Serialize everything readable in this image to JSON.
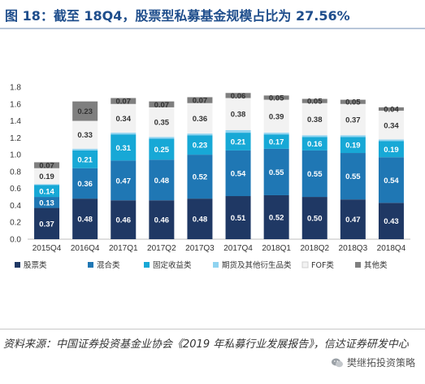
{
  "figure": {
    "title": "图 18：截至 18Q4，股票型私募基金规模占比为 27.56%"
  },
  "source": {
    "text": "资料来源：中国证券投资基金业协会《2019 年私募行业发展报告》，信达证券研发中心"
  },
  "watermark": {
    "text": "樊继拓投资策略",
    "icon": "wechat-logo-icon"
  },
  "colors": {
    "header_rule": "#b8c7d9",
    "title": "#1f4e8c"
  },
  "chart_data": {
    "type": "bar",
    "stacked": true,
    "title": "",
    "xlabel": "",
    "ylabel": "",
    "ylim": [
      0,
      1.8
    ],
    "yticks": [
      "0.0",
      "0.2",
      "0.4",
      "0.6",
      "0.8",
      "1.0",
      "1.2",
      "1.4",
      "1.6",
      "1.8"
    ],
    "grid": false,
    "legend_position": "bottom",
    "categories": [
      "2015Q4",
      "2016Q4",
      "2017Q1",
      "2017Q2",
      "2017Q3",
      "2017Q4",
      "2018Q1",
      "2018Q2",
      "2018Q3",
      "2018Q4"
    ],
    "series": [
      {
        "name": "股票类",
        "color": "#1f3864",
        "label_color": "#ffffff",
        "values": [
          0.37,
          0.48,
          0.46,
          0.46,
          0.48,
          0.51,
          0.52,
          0.5,
          0.47,
          0.43
        ]
      },
      {
        "name": "混合类",
        "color": "#1f77b4",
        "label_color": "#ffffff",
        "values": [
          0.13,
          0.36,
          0.47,
          0.48,
          0.52,
          0.54,
          0.55,
          0.55,
          0.55,
          0.54
        ]
      },
      {
        "name": "固定收益类",
        "color": "#17a8d6",
        "label_color": "#ffffff",
        "values": [
          0.14,
          0.21,
          0.31,
          0.25,
          0.23,
          0.21,
          0.17,
          0.16,
          0.19,
          0.19
        ]
      },
      {
        "name": "期货及其他衍生品类",
        "color": "#8fd3f0",
        "label_color": "#333333",
        "values": [
          0.01,
          0.02,
          0.02,
          0.02,
          0.02,
          0.03,
          0.02,
          0.02,
          0.02,
          0.02
        ]
      },
      {
        "name": "FOF类",
        "color": "#f2f2f2",
        "label_color": "#333333",
        "values": [
          0.19,
          0.33,
          0.34,
          0.35,
          0.36,
          0.38,
          0.39,
          0.38,
          0.37,
          0.34
        ]
      },
      {
        "name": "其他类",
        "color": "#7f7f7f",
        "label_color": "#333333",
        "values": [
          0.07,
          0.23,
          0.07,
          0.07,
          0.07,
          0.06,
          0.05,
          0.05,
          0.05,
          0.04
        ]
      }
    ]
  }
}
